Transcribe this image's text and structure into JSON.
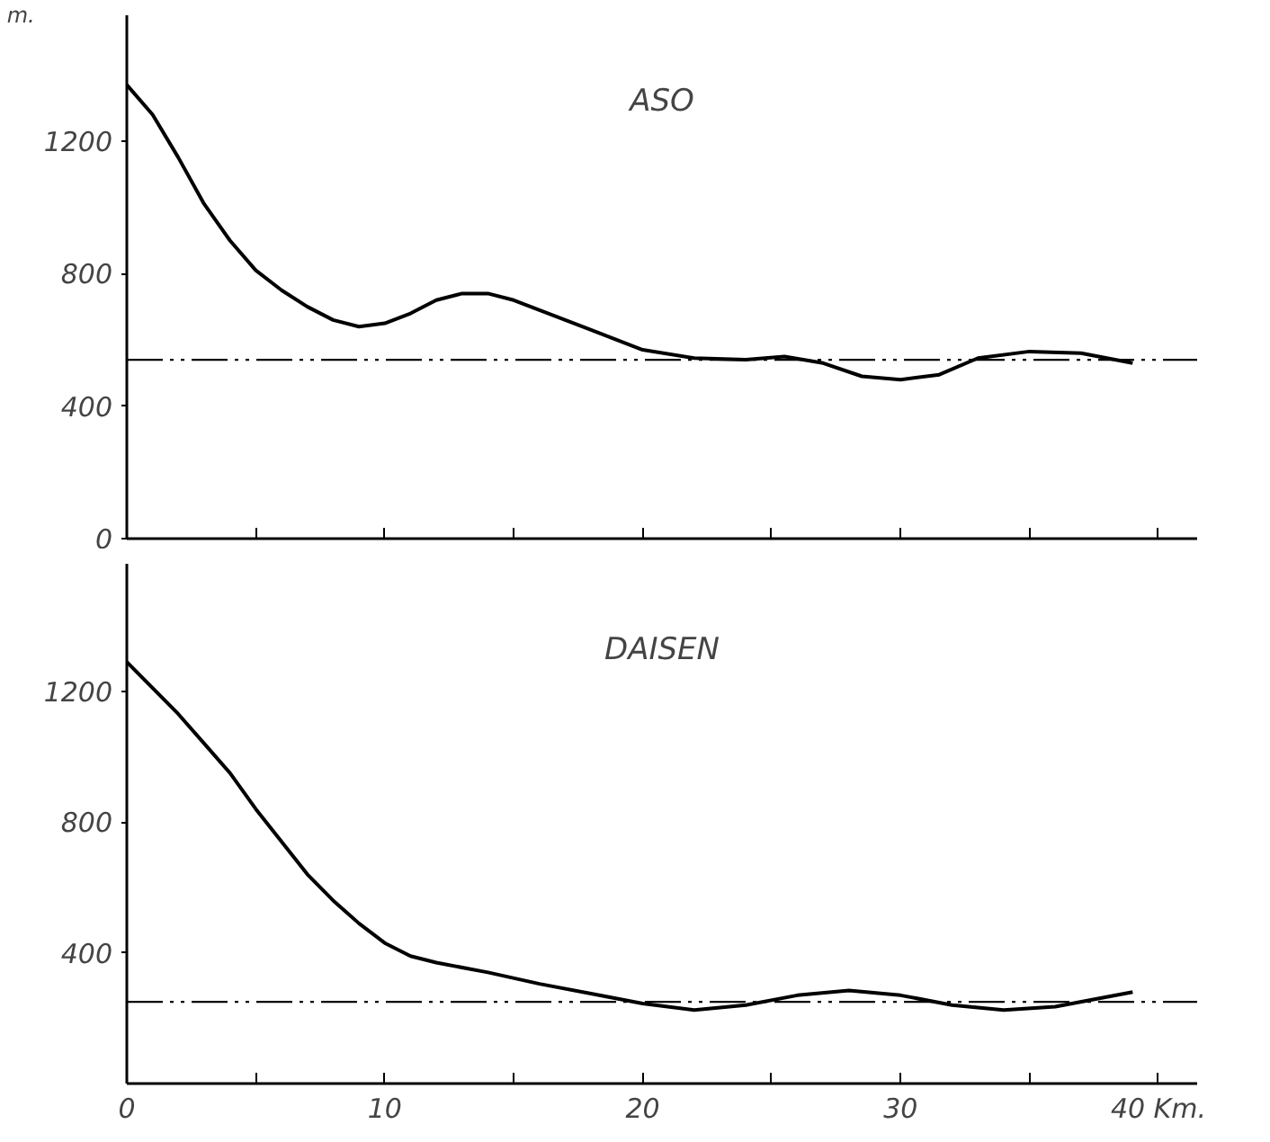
{
  "chart_data": [
    {
      "type": "line",
      "title": "ASO",
      "ylabel": "m.",
      "xlim": [
        0,
        41.5
      ],
      "ylim": [
        0,
        1580
      ],
      "xticks": [
        {
          "value": 0,
          "label": null
        },
        {
          "value": 5,
          "label": null
        },
        {
          "value": 10,
          "label": null
        },
        {
          "value": 15,
          "label": null
        },
        {
          "value": 20,
          "label": null
        },
        {
          "value": 25,
          "label": null
        },
        {
          "value": 30,
          "label": null
        },
        {
          "value": 35,
          "label": null
        },
        {
          "value": 40,
          "label": null
        }
      ],
      "yticks": [
        0,
        400,
        800,
        1200
      ],
      "tick_labels": "y",
      "grid": false,
      "series": [
        {
          "color": "#000000",
          "x": [
            0,
            1,
            2,
            3,
            4,
            5,
            6,
            7,
            8,
            9,
            10,
            11,
            12,
            13,
            14,
            15,
            16,
            18,
            20,
            22,
            24,
            25.5,
            27,
            28.5,
            30,
            31.5,
            33,
            35,
            37,
            39
          ],
          "values": [
            1370,
            1280,
            1150,
            1010,
            900,
            810,
            750,
            700,
            660,
            640,
            650,
            680,
            720,
            740,
            740,
            720,
            690,
            630,
            570,
            545,
            540,
            550,
            530,
            490,
            480,
            495,
            545,
            565,
            560,
            530
          ]
        }
      ],
      "ref_lines": [
        {
          "axis": "y",
          "value": 540,
          "label": null,
          "color": "#000000",
          "line_style": "dashdot"
        }
      ]
    },
    {
      "type": "line",
      "title": "DAISEN",
      "xlim": [
        0,
        41.5
      ],
      "ylim": [
        0,
        1590
      ],
      "xticks": [
        0,
        {
          "value": 5,
          "label": null
        },
        10,
        {
          "value": 15,
          "label": null
        },
        20,
        {
          "value": 25,
          "label": null
        },
        30,
        {
          "value": 35,
          "label": null
        },
        {
          "value": 40,
          "label": "40 Km."
        }
      ],
      "yticks": [
        400,
        800,
        1200
      ],
      "grid": false,
      "series": [
        {
          "color": "#000000",
          "x": [
            0,
            1,
            2,
            3,
            4,
            5,
            6,
            7,
            8,
            9,
            10,
            11,
            12,
            14,
            16,
            18,
            20,
            22,
            24,
            26,
            28,
            30,
            32,
            34,
            36,
            39
          ],
          "values": [
            1290,
            1210,
            1130,
            1040,
            950,
            840,
            740,
            640,
            560,
            490,
            430,
            390,
            370,
            340,
            305,
            275,
            245,
            225,
            240,
            270,
            285,
            270,
            240,
            225,
            235,
            280
          ]
        }
      ],
      "ref_lines": [
        {
          "axis": "y",
          "value": 250,
          "label": null,
          "color": "#000000",
          "line_style": "dashdot"
        }
      ]
    }
  ]
}
